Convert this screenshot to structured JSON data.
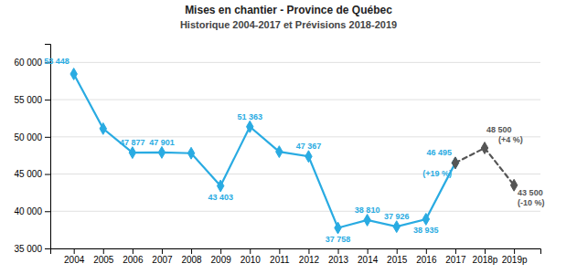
{
  "chart_data": {
    "type": "line",
    "title": "Mises en chantier - Province de Québec",
    "subtitle": "Historique 2004-2017 et Prévisions 2018-2019",
    "series": [
      {
        "color": "#29ABE2",
        "marker": "diamond",
        "line_style": "solid",
        "x": [
          2004,
          2005,
          2006,
          2007,
          2008,
          2009,
          2010,
          2011,
          2012,
          2013,
          2014,
          2015,
          2016,
          2017
        ],
        "values": [
          58448,
          51100,
          47877,
          47901,
          47800,
          43403,
          51363,
          48000,
          47367,
          37758,
          38810,
          37926,
          38935,
          46495
        ]
      },
      {
        "color": "#555555",
        "marker": "diamond",
        "line_style": "dashed",
        "x": [
          2017,
          2018,
          2019
        ],
        "values": [
          46495,
          48500,
          43500
        ]
      }
    ],
    "xlim": [
      2003.2,
      2019.9
    ],
    "xticks": [
      2004,
      2005,
      2006,
      2007,
      2008,
      2009,
      2010,
      2011,
      2012,
      2013,
      2014,
      2015,
      2016,
      2017,
      {
        "value": 2018,
        "label": "2018p"
      },
      {
        "value": 2019,
        "label": "2019p"
      }
    ],
    "ylim": [
      35000,
      62500
    ],
    "yticks": [
      {
        "value": 35000,
        "label": "35 000"
      },
      {
        "value": 40000,
        "label": "40 000"
      },
      {
        "value": 45000,
        "label": "45 000"
      },
      {
        "value": 50000,
        "label": "50 000"
      },
      {
        "value": 55000,
        "label": "55 000"
      },
      {
        "value": 60000,
        "label": "60 000"
      }
    ],
    "grid": true,
    "annotations": [
      {
        "text": "58 448",
        "x": 2004,
        "y": 58448,
        "color": "#29ABE2"
      },
      {
        "text": "47 877",
        "x": 2006,
        "y": 47877,
        "color": "#29ABE2"
      },
      {
        "text": "47 901",
        "x": 2007,
        "y": 47901,
        "color": "#29ABE2"
      },
      {
        "text": "43 403",
        "x": 2009,
        "y": 43403,
        "color": "#29ABE2"
      },
      {
        "text": "51 363",
        "x": 2010,
        "y": 51363,
        "color": "#29ABE2"
      },
      {
        "text": "47 367",
        "x": 2012,
        "y": 47367,
        "color": "#29ABE2"
      },
      {
        "text": "37 758",
        "x": 2013,
        "y": 37758,
        "color": "#29ABE2"
      },
      {
        "text": "38 810",
        "x": 2014,
        "y": 38810,
        "color": "#29ABE2"
      },
      {
        "text": "37 926",
        "x": 2015,
        "y": 37926,
        "color": "#29ABE2"
      },
      {
        "text": "38 935",
        "x": 2016,
        "y": 38935,
        "color": "#29ABE2"
      },
      {
        "text": "46 495",
        "x": 2017,
        "y": 46495,
        "color": "#29ABE2"
      },
      {
        "text": "(+19 %)",
        "x": 2017,
        "y": 46495,
        "color": "#29ABE2"
      },
      {
        "text": "48 500",
        "x": 2018,
        "y": 48500,
        "color": "#555555"
      },
      {
        "text": "(+4 %)",
        "x": 2018,
        "y": 48500,
        "color": "#555555"
      },
      {
        "text": "43 500",
        "x": 2019,
        "y": 43500,
        "color": "#555555"
      },
      {
        "text": "(-10 %)",
        "x": 2019,
        "y": 43500,
        "color": "#555555"
      }
    ]
  }
}
